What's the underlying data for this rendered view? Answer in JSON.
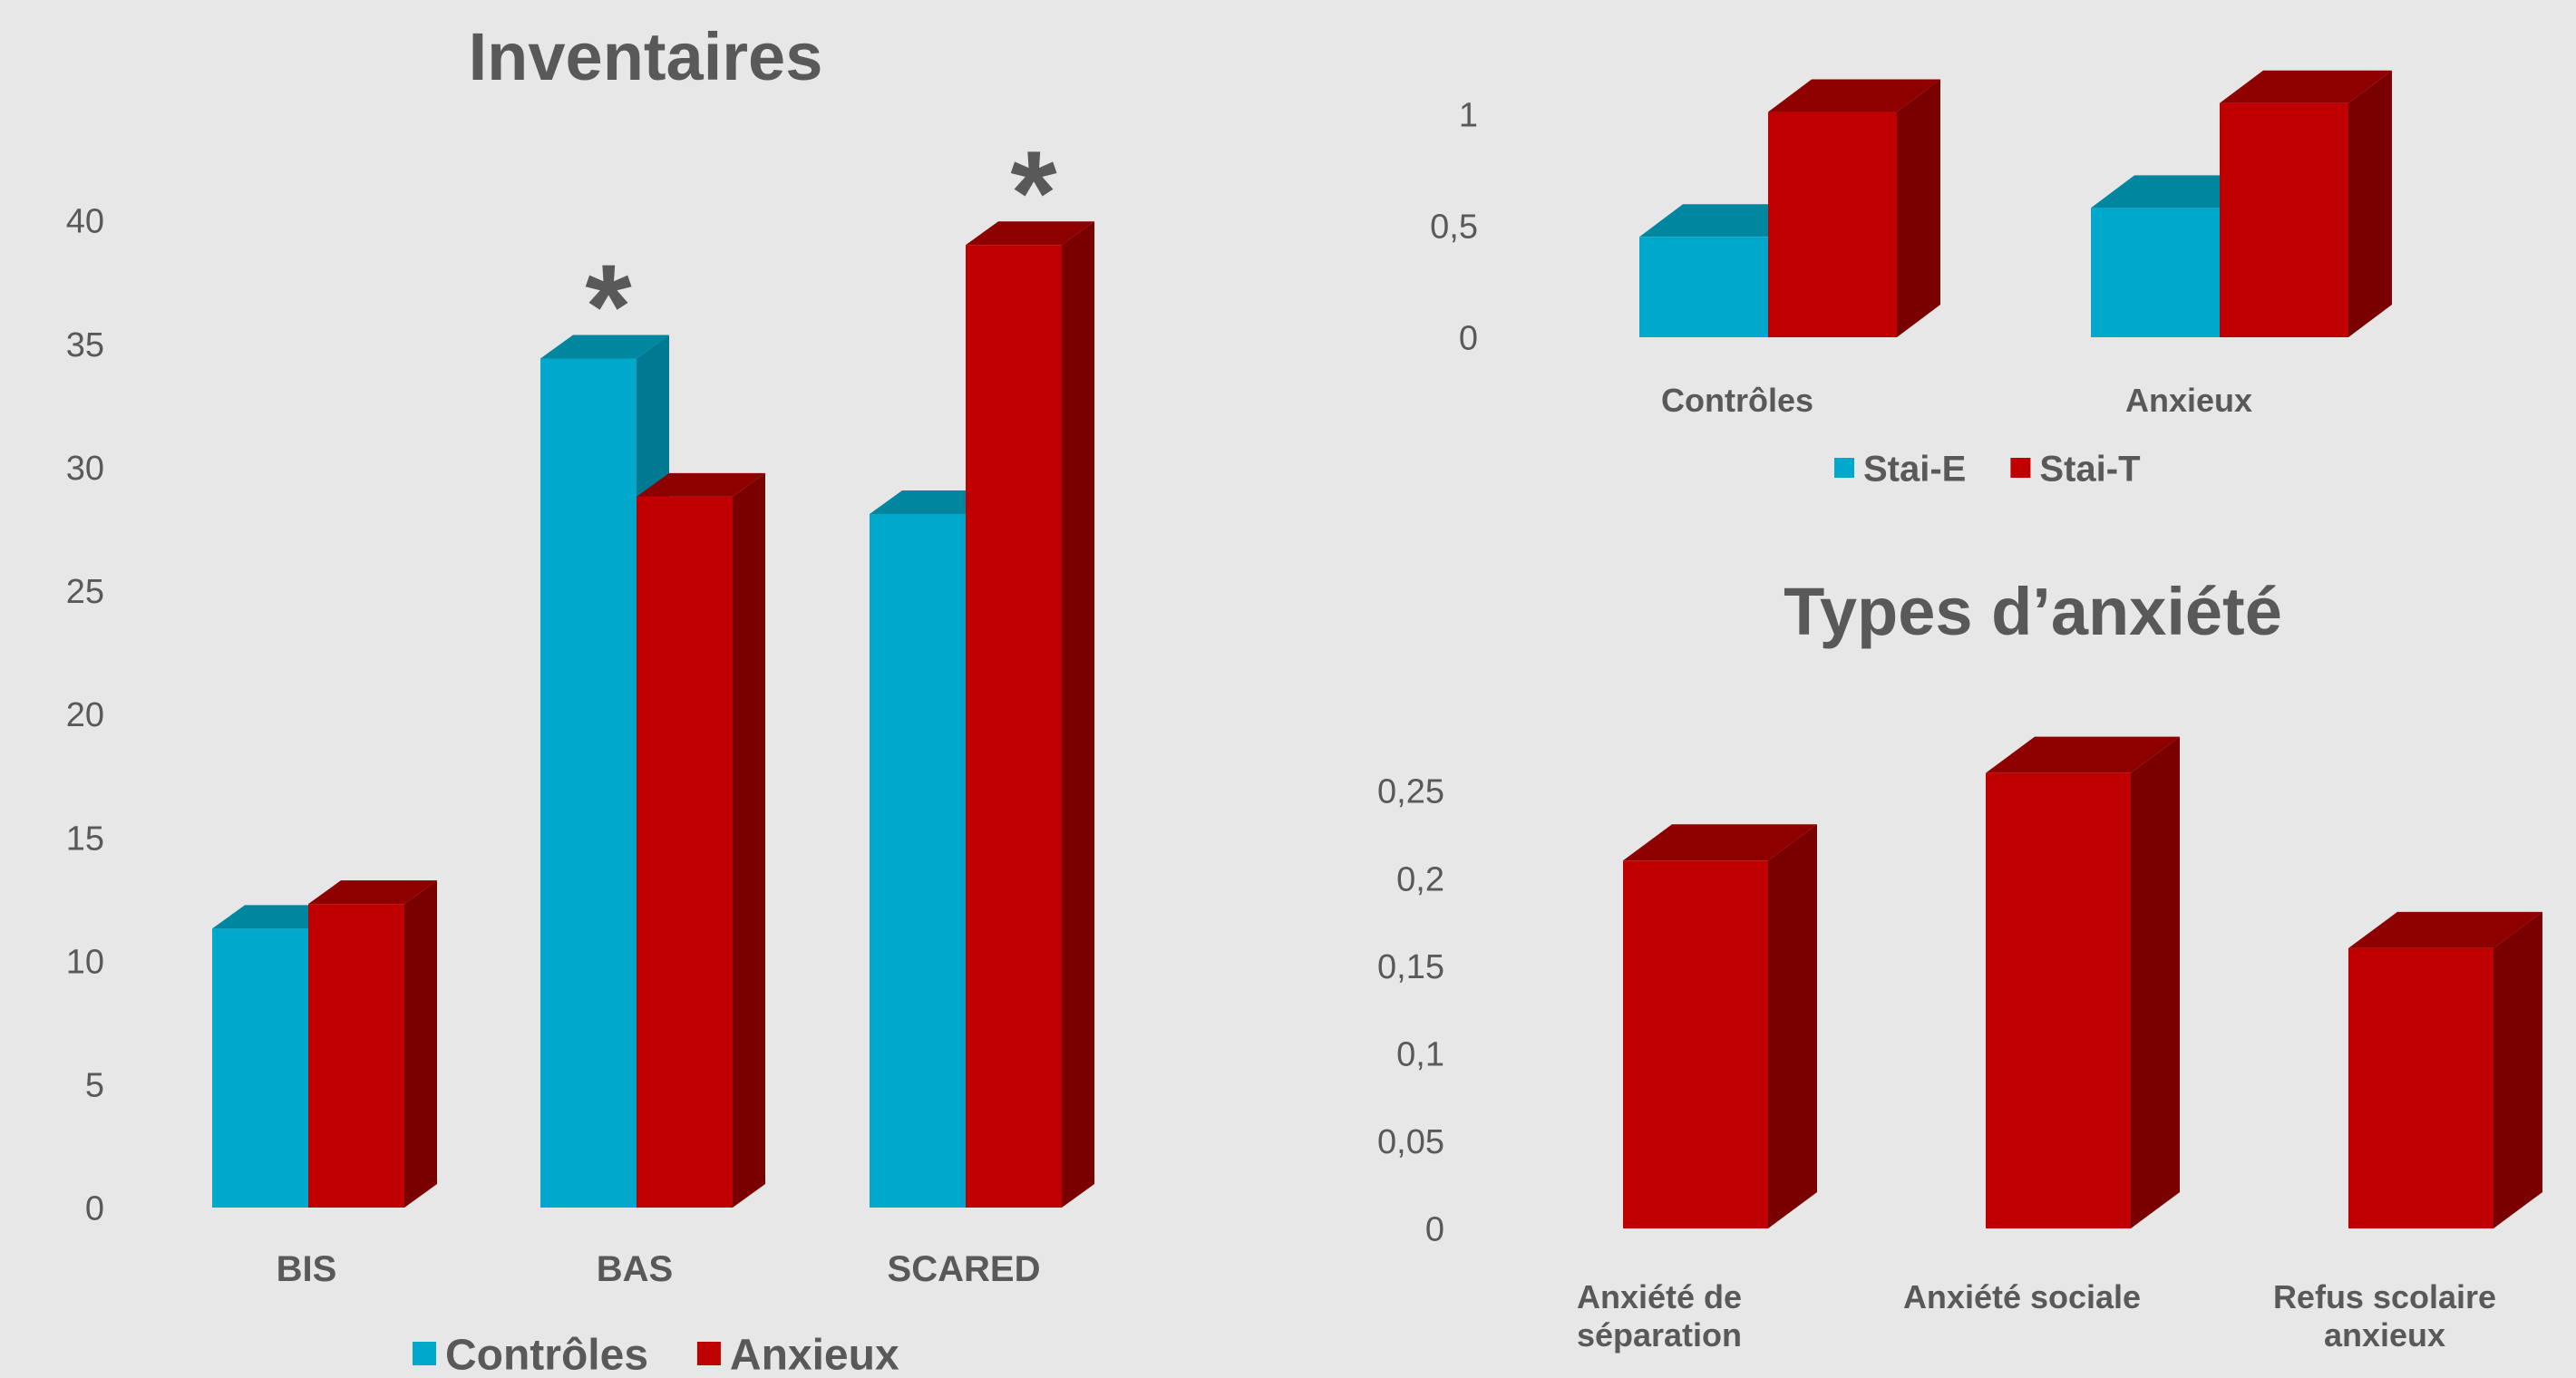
{
  "chart_data": [
    {
      "type": "bar",
      "title": "Inventaires",
      "categories": [
        "BIS",
        "BAS",
        "SCARED"
      ],
      "series": [
        {
          "name": "Contrôles",
          "values": [
            11.3,
            34.4,
            28.1
          ]
        },
        {
          "name": "Anxieux",
          "values": [
            12.3,
            28.8,
            39.0
          ]
        }
      ],
      "y_ticks": [
        "0",
        "5",
        "10",
        "15",
        "20",
        "25",
        "30",
        "35",
        "40"
      ],
      "ylim": [
        0,
        40
      ],
      "annotations": [
        {
          "category": "BAS",
          "text": "*"
        },
        {
          "category": "SCARED",
          "text": "*"
        }
      ],
      "legend_position": "bottom"
    },
    {
      "type": "bar",
      "title": "",
      "categories": [
        "Contrôles",
        "Anxieux"
      ],
      "series": [
        {
          "name": "Stai-E",
          "values": [
            0.45,
            0.58
          ]
        },
        {
          "name": "Stai-T",
          "values": [
            1.01,
            1.05
          ]
        }
      ],
      "y_ticks": [
        "0",
        "0,5",
        "1"
      ],
      "ylim": [
        0,
        1
      ],
      "legend_position": "bottom"
    },
    {
      "type": "bar",
      "title": "Types d’anxiété",
      "categories": [
        "Anxiété de séparation",
        "Anxiété sociale",
        "Refus scolaire anxieux"
      ],
      "category_lines": [
        [
          "Anxiété de",
          "séparation"
        ],
        [
          "Anxiété sociale"
        ],
        [
          "Refus scolaire",
          "anxieux"
        ]
      ],
      "series": [
        {
          "name": "",
          "values": [
            0.21,
            0.26,
            0.16
          ]
        }
      ],
      "y_ticks": [
        "0",
        "0,05",
        "0,1",
        "0,15",
        "0,2",
        "0,25"
      ],
      "ylim": [
        0,
        0.25
      ],
      "legend_position": "none"
    }
  ],
  "colors": {
    "background": "#e7e7e7",
    "series_blue": "#00a9cc",
    "series_blue_side": "#007a93",
    "series_blue_top": "#00879f",
    "series_red": "#c00000",
    "series_red_side": "#7a0000",
    "series_red_top": "#8e0000",
    "text": "#595959"
  }
}
